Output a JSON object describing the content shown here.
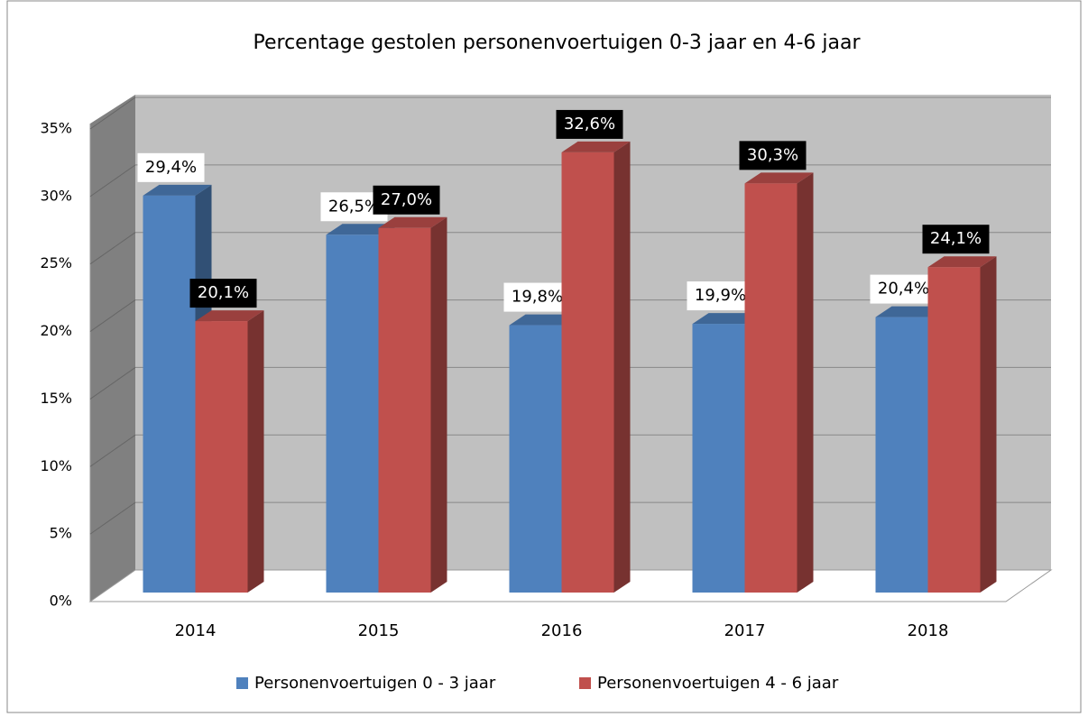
{
  "chart_data": {
    "type": "bar3d",
    "title": "Percentage gestolen personenvoertuigen 0-3 jaar en 4-6 jaar",
    "categories": [
      "2014",
      "2015",
      "2016",
      "2017",
      "2018"
    ],
    "series": [
      {
        "name": "Personenvoertuigen 0 - 3 jaar",
        "color": "#4f81bd",
        "values": [
          29.4,
          26.5,
          19.8,
          19.9,
          20.4
        ],
        "value_labels": [
          "29,4%",
          "26,5%",
          "19,8%",
          "19,9%",
          "20,4%"
        ]
      },
      {
        "name": "Personenvoertuigen 4 - 6 jaar",
        "color": "#c0504d",
        "values": [
          20.1,
          27.0,
          32.6,
          30.3,
          24.1
        ],
        "value_labels": [
          "20,1%",
          "27,0%",
          "32,6%",
          "30,3%",
          "24,1%"
        ]
      }
    ],
    "ylim": [
      0,
      35
    ],
    "yticks": [
      {
        "value": 0,
        "label": "0%"
      },
      {
        "value": 5,
        "label": "5%"
      },
      {
        "value": 10,
        "label": "10%"
      },
      {
        "value": 15,
        "label": "15%"
      },
      {
        "value": 20,
        "label": "20%"
      },
      {
        "value": 25,
        "label": "25%"
      },
      {
        "value": 30,
        "label": "30%"
      },
      {
        "value": 35,
        "label": "35%"
      }
    ],
    "grid": true,
    "legend": "bottom"
  }
}
